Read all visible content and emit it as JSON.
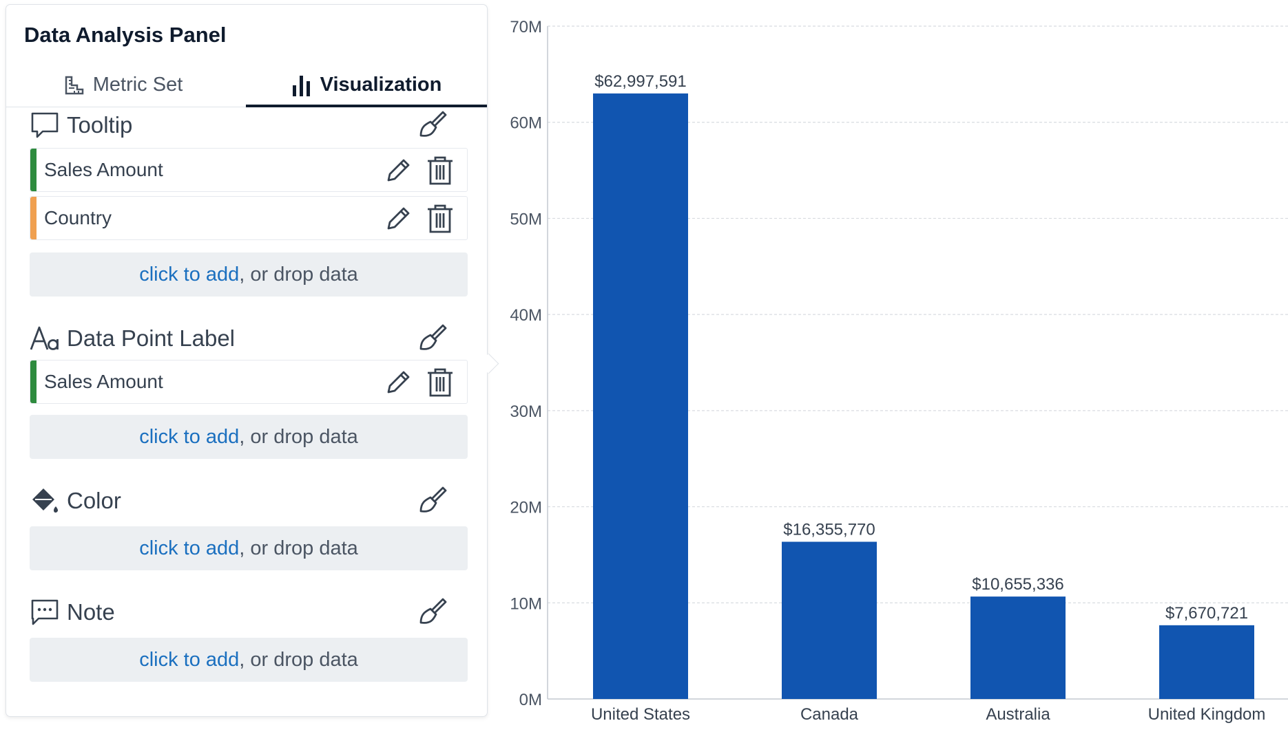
{
  "panel": {
    "title": "Data Analysis Panel",
    "tabs": [
      {
        "label": "Metric Set",
        "icon": "ruler-chart-icon",
        "active": false
      },
      {
        "label": "Visualization",
        "icon": "bar-chart-icon",
        "active": true
      }
    ],
    "sections": [
      {
        "label": "Tooltip",
        "icon": "tooltip-icon",
        "fields": [
          {
            "label": "Sales Amount",
            "color": "#2e8b3e"
          },
          {
            "label": "Country",
            "color": "#f0a050"
          }
        ]
      },
      {
        "label": "Data Point Label",
        "icon": "font-icon",
        "fields": [
          {
            "label": "Sales Amount",
            "color": "#2e8b3e"
          }
        ]
      },
      {
        "label": "Color",
        "icon": "paint-bucket-icon",
        "fields": []
      },
      {
        "label": "Note",
        "icon": "note-icon",
        "fields": []
      }
    ],
    "drop_zone": {
      "link": "click to add",
      "rest": ", or drop data"
    }
  },
  "chart_data": {
    "type": "bar",
    "categories": [
      "United States",
      "Canada",
      "Australia",
      "United Kingdom"
    ],
    "values": [
      62997591,
      16355770,
      10655336,
      7670721
    ],
    "data_labels": [
      "$62,997,591",
      "$16,355,770",
      "$10,655,336",
      "$7,670,721"
    ],
    "ylim": [
      0,
      70000000
    ],
    "yticks": [
      "0M",
      "10M",
      "20M",
      "30M",
      "40M",
      "50M",
      "60M",
      "70M"
    ],
    "bar_color": "#1155b0",
    "grid": true
  }
}
